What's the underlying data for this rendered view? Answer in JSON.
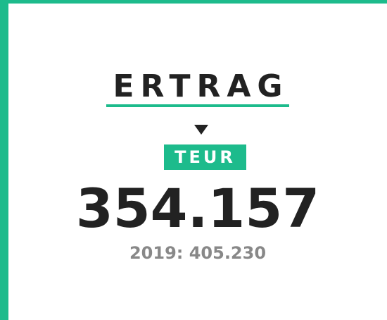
{
  "card": {
    "title": "ERTRAG",
    "unit": "TEUR",
    "value": "354.157",
    "previous": "2019: 405.230"
  }
}
